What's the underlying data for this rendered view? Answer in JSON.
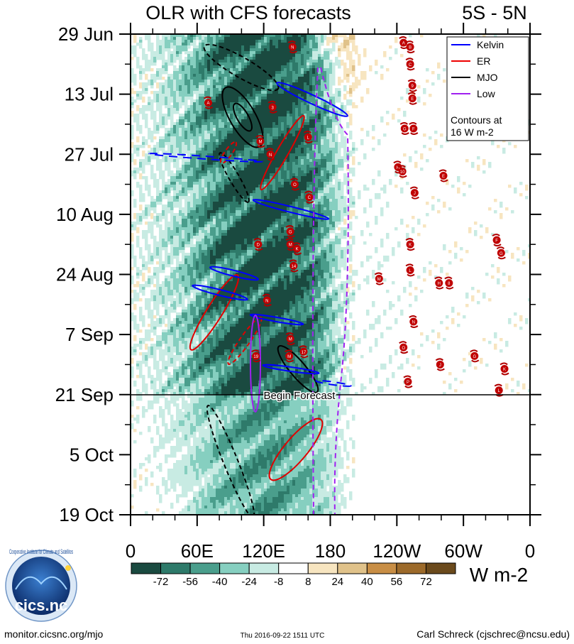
{
  "chart_data": {
    "type": "heatmap",
    "title": "OLR with CFS forecasts",
    "region": "5S - 5N",
    "y_tick_labels": [
      "29 Jun",
      "13 Jul",
      "27 Jul",
      "10 Aug",
      "24 Aug",
      "7 Sep",
      "21 Sep",
      "5 Oct",
      "19 Oct"
    ],
    "x_tick_labels": [
      "0",
      "60E",
      "120E",
      "180",
      "120W",
      "60W",
      "0"
    ],
    "x_range_deg_east": [
      0,
      360
    ],
    "forecast_label": "Begin Forecast",
    "colorbar": {
      "levels": [
        "-72",
        "-56",
        "-40",
        "-24",
        "-8",
        "8",
        "24",
        "40",
        "56",
        "72"
      ],
      "colors": [
        "#1a4a40",
        "#2e7a6a",
        "#4a9e8c",
        "#86cfc0",
        "#c8ebe3",
        "#ffffff",
        "#f7e5c0",
        "#e0c28a",
        "#c88e45",
        "#9c6a2a",
        "#6b4a1c"
      ],
      "units": "W m-2"
    },
    "legend": [
      {
        "label": "Kelvin",
        "color": "#0000ff"
      },
      {
        "label": "ER",
        "color": "#ee0000"
      },
      {
        "label": "MJO",
        "color": "#000000"
      },
      {
        "label": "Low",
        "color": "#a020f0"
      }
    ],
    "contour_note": [
      "Contours at",
      "16 W m-2"
    ],
    "storm_markers": [
      {
        "label": "A",
        "lon": 246,
        "day": 2
      },
      {
        "label": "B",
        "lon": 252,
        "day": 3
      },
      {
        "label": "N",
        "lon": 146,
        "day": 3
      },
      {
        "label": "C",
        "lon": 252,
        "day": 7
      },
      {
        "label": "9",
        "lon": 254,
        "day": 12
      },
      {
        "label": "E",
        "lon": 254,
        "day": 15
      },
      {
        "label": "A",
        "lon": 70,
        "day": 16
      },
      {
        "label": "3",
        "lon": 128,
        "day": 17
      },
      {
        "label": "G",
        "lon": 247,
        "day": 22
      },
      {
        "label": "F",
        "lon": 255,
        "day": 22
      },
      {
        "label": "L",
        "lon": 160,
        "day": 24
      },
      {
        "label": "M",
        "lon": 117,
        "day": 25
      },
      {
        "label": "N",
        "lon": 126,
        "day": 28
      },
      {
        "label": "H",
        "lon": 241,
        "day": 31
      },
      {
        "label": "10",
        "lon": 245,
        "day": 32
      },
      {
        "label": "E",
        "lon": 282,
        "day": 33
      },
      {
        "label": "O",
        "lon": 148,
        "day": 35
      },
      {
        "label": "J",
        "lon": 256,
        "day": 37
      },
      {
        "label": "C",
        "lon": 161,
        "day": 38
      },
      {
        "label": "G",
        "lon": 144,
        "day": 46
      },
      {
        "label": "F",
        "lon": 330,
        "day": 48
      },
      {
        "label": "D",
        "lon": 115,
        "day": 49
      },
      {
        "label": "M",
        "lon": 144,
        "day": 49
      },
      {
        "label": "K",
        "lon": 150,
        "day": 50
      },
      {
        "label": "K",
        "lon": 252,
        "day": 49
      },
      {
        "label": "G",
        "lon": 334,
        "day": 51
      },
      {
        "label": "14",
        "lon": 147,
        "day": 54
      },
      {
        "label": "L",
        "lon": 252,
        "day": 55
      },
      {
        "label": "M",
        "lon": 224,
        "day": 57
      },
      {
        "label": "H",
        "lon": 278,
        "day": 58
      },
      {
        "label": "8",
        "lon": 287,
        "day": 58
      },
      {
        "label": "N",
        "lon": 123,
        "day": 62
      },
      {
        "label": "N",
        "lon": 255,
        "day": 67
      },
      {
        "label": "M",
        "lon": 144,
        "day": 71
      },
      {
        "label": "O",
        "lon": 246,
        "day": 73
      },
      {
        "label": "17",
        "lon": 156,
        "day": 74
      },
      {
        "label": "19",
        "lon": 113,
        "day": 75
      },
      {
        "label": "M",
        "lon": 143,
        "day": 75
      },
      {
        "label": "G",
        "lon": 310,
        "day": 75
      },
      {
        "label": "J",
        "lon": 279,
        "day": 77
      },
      {
        "label": "K",
        "lon": 337,
        "day": 78
      },
      {
        "label": "P",
        "lon": 250,
        "day": 81
      },
      {
        "label": "L",
        "lon": 332,
        "day": 83
      }
    ]
  },
  "footer": {
    "left": "monitor.cicsnc.org/mjo",
    "center": "Thu 2016-09-22 1511 UTC",
    "right": "Carl Schreck (cjschrec@ncsu.edu)"
  },
  "logo": {
    "text": "cics.nc",
    "ring_text": "Cooperative Institute for Climate and Satellites"
  }
}
